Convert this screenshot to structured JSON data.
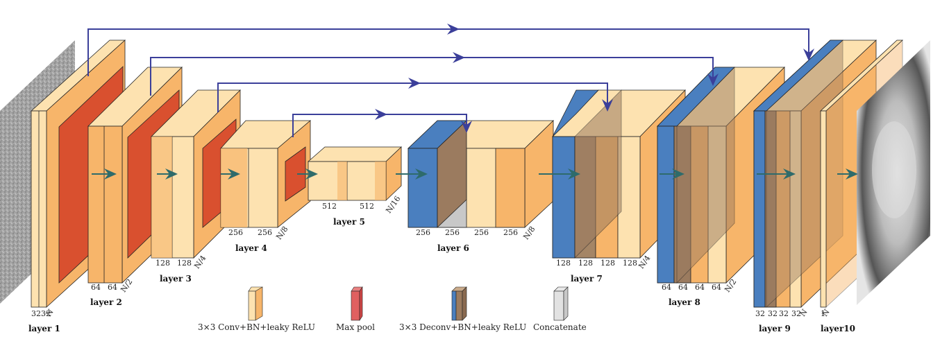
{
  "diagram": {
    "layers": [
      {
        "name": "layer 1",
        "dims": [
          "32",
          "32",
          "N"
        ]
      },
      {
        "name": "layer 2",
        "dims": [
          "64",
          "64",
          "N/2"
        ]
      },
      {
        "name": "layer 3",
        "dims": [
          "128",
          "128",
          "N/4"
        ]
      },
      {
        "name": "layer 4",
        "dims": [
          "256",
          "256",
          "N/8"
        ]
      },
      {
        "name": "layer 5",
        "dims": [
          "512",
          "512",
          "N/16"
        ]
      },
      {
        "name": "layer 6",
        "dims": [
          "256",
          "256",
          "256",
          "256",
          "N/8"
        ]
      },
      {
        "name": "layer 7",
        "dims": [
          "128",
          "128",
          "128",
          "128",
          "N/4"
        ]
      },
      {
        "name": "layer 8",
        "dims": [
          "64",
          "64",
          "64",
          "64",
          "N/2"
        ]
      },
      {
        "name": "layer 9",
        "dims": [
          "32",
          "32",
          "32",
          "32",
          "N"
        ]
      },
      {
        "name": "layer10",
        "dims": [
          "1",
          "N"
        ]
      }
    ],
    "legend": [
      {
        "label": "3×3 Conv+BN+leaky ReLU",
        "kind": "conv"
      },
      {
        "label": "Max pool",
        "kind": "pool"
      },
      {
        "label": "3×3 Deconv+BN+leaky ReLU",
        "kind": "deconv"
      },
      {
        "label": "Concatenate",
        "kind": "concat"
      }
    ],
    "colors": {
      "conv": "#f7b56a",
      "conv_light": "#fde2b0",
      "pool": "#d9502f",
      "deconv": "#4a7fbf",
      "deconv_brown": "#9b7b5f",
      "concat": "#c8c8c8",
      "skip_arrow": "#3b3f9a",
      "flow_arrow": "#2e6b6b"
    }
  }
}
